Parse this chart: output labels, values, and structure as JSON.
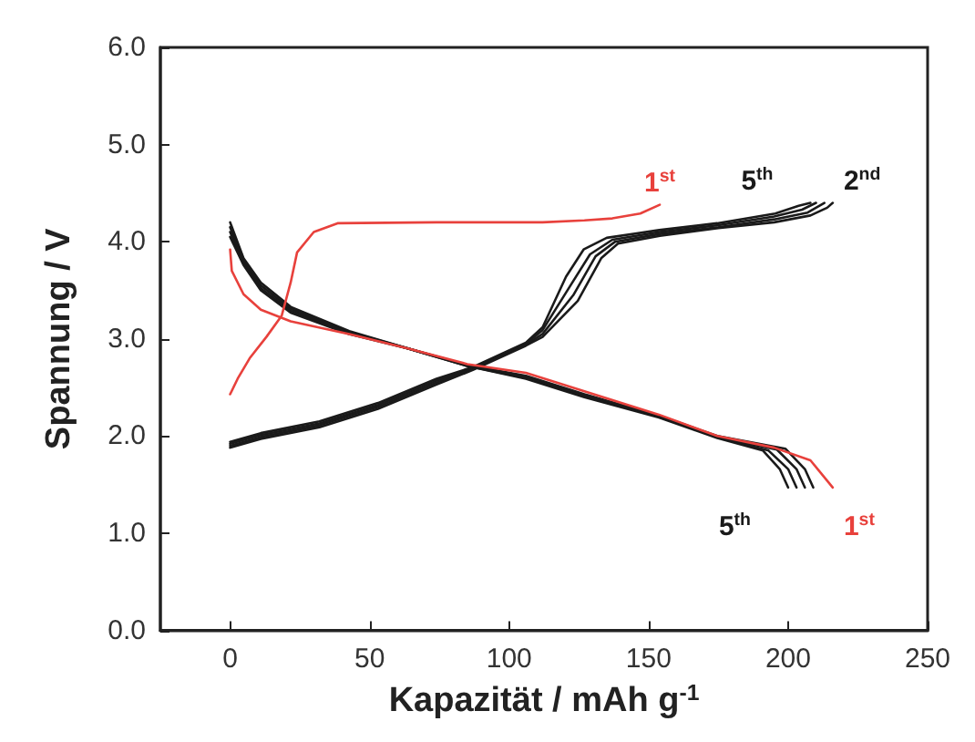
{
  "chart_data": {
    "type": "line",
    "xlabel": "Kapazität / mAh g$^{-1}$",
    "ylabel": "Spannung / V",
    "xlim": [
      -25,
      250
    ],
    "xticks": [
      0,
      50,
      100,
      150,
      200,
      250
    ],
    "ylim": [
      0,
      6
    ],
    "yticks": [
      {
        "value": 0,
        "label": "0.0"
      },
      {
        "value": 1,
        "label": "1.0"
      },
      {
        "value": 2,
        "label": "2.0"
      },
      {
        "value": 3,
        "label": "3.0"
      },
      {
        "value": 4,
        "label": "4.0"
      },
      {
        "value": 5,
        "label": "5.0"
      },
      {
        "value": 6,
        "label": "6.0"
      }
    ],
    "grid": false,
    "legend": false,
    "marker": "none",
    "line_style": "solid",
    "series": [
      {
        "name": "1$^{st}$",
        "color": "#e8413c",
        "x": [
          0,
          2.7,
          7,
          13,
          18.5,
          21.7,
          24,
          30,
          38.5,
          74,
          112,
          127,
          137,
          147,
          154
        ],
        "values": [
          2.43,
          2.59,
          2.8,
          3.02,
          3.24,
          3.58,
          3.89,
          4.1,
          4.19,
          4.2,
          4.2,
          4.22,
          4.24,
          4.29,
          4.38
        ]
      },
      {
        "name": "5$^{th}$",
        "color": "#1a1a1a",
        "x": [
          0,
          11,
          32,
          53,
          74,
          87,
          106,
          112,
          120.4,
          126.7,
          135,
          153.8,
          174.6,
          195.4,
          203.8,
          208
        ],
        "values": [
          1.94,
          2.03,
          2.15,
          2.34,
          2.59,
          2.71,
          2.96,
          3.12,
          3.64,
          3.92,
          4.04,
          4.12,
          4.19,
          4.29,
          4.37,
          4.4
        ]
      },
      {
        "color": "#1a1a1a",
        "x": [
          0,
          11,
          32,
          53,
          74,
          87,
          106,
          112,
          122,
          129,
          137,
          154,
          175,
          195,
          205,
          210
        ],
        "values": [
          1.92,
          2.01,
          2.13,
          2.32,
          2.57,
          2.7,
          2.95,
          3.09,
          3.55,
          3.87,
          4.02,
          4.1,
          4.17,
          4.26,
          4.33,
          4.4
        ]
      },
      {
        "color": "#1a1a1a",
        "x": [
          0,
          11,
          32,
          53,
          74,
          87,
          106,
          112,
          123,
          131,
          138,
          154,
          175,
          195,
          207,
          213
        ],
        "values": [
          1.9,
          1.99,
          2.11,
          2.3,
          2.55,
          2.69,
          2.94,
          3.05,
          3.45,
          3.85,
          4.0,
          4.08,
          4.15,
          4.23,
          4.3,
          4.4
        ]
      },
      {
        "name": "2$^{nd}$",
        "color": "#1a1a1a",
        "x": [
          0,
          11,
          32,
          53,
          74,
          87,
          106,
          112,
          124.6,
          133,
          139,
          154,
          175,
          195,
          208,
          214,
          216
        ],
        "values": [
          1.88,
          1.97,
          2.09,
          2.28,
          2.53,
          2.68,
          2.93,
          3.02,
          3.39,
          3.83,
          3.98,
          4.06,
          4.14,
          4.2,
          4.27,
          4.35,
          4.4
        ]
      },
      {
        "name": "1$^{st}$",
        "color": "#e8413c",
        "x": [
          0,
          0.6,
          4.8,
          11,
          21.7,
          42.7,
          64,
          85,
          106,
          127,
          153.7,
          174.6,
          195,
          208,
          214,
          216
        ],
        "values": [
          3.92,
          3.7,
          3.46,
          3.3,
          3.18,
          3.05,
          2.9,
          2.74,
          2.65,
          2.46,
          2.22,
          2.0,
          1.88,
          1.75,
          1.54,
          1.47
        ]
      },
      {
        "name": "5$^{th}$",
        "color": "#1a1a1a",
        "x": [
          0,
          4.8,
          11,
          21.7,
          42.7,
          64,
          85,
          106,
          127,
          153.7,
          174.6,
          191,
          197,
          200
        ],
        "values": [
          4.2,
          3.83,
          3.58,
          3.33,
          3.08,
          2.9,
          2.72,
          2.59,
          2.4,
          2.19,
          1.98,
          1.85,
          1.66,
          1.47
        ]
      },
      {
        "color": "#1a1a1a",
        "x": [
          0,
          4.8,
          11,
          21.7,
          42.7,
          64,
          85,
          106,
          127,
          153.7,
          174.6,
          193,
          200,
          203
        ],
        "values": [
          4.15,
          3.8,
          3.55,
          3.31,
          3.07,
          2.9,
          2.72,
          2.6,
          2.41,
          2.2,
          1.99,
          1.85,
          1.66,
          1.47
        ]
      },
      {
        "color": "#1a1a1a",
        "x": [
          0,
          4.8,
          11,
          21.7,
          42.7,
          64,
          85,
          106,
          127,
          153.7,
          174.6,
          196,
          203,
          206
        ],
        "values": [
          4.1,
          3.78,
          3.52,
          3.29,
          3.06,
          2.9,
          2.73,
          2.61,
          2.42,
          2.2,
          1.99,
          1.86,
          1.66,
          1.47
        ]
      },
      {
        "color": "#1a1a1a",
        "x": [
          0,
          4.8,
          11,
          21.7,
          42.7,
          64,
          85,
          106,
          127,
          153.7,
          174.6,
          199,
          206,
          209
        ],
        "values": [
          4.05,
          3.76,
          3.5,
          3.27,
          3.05,
          2.9,
          2.73,
          2.62,
          2.43,
          2.21,
          2.0,
          1.87,
          1.66,
          1.47
        ]
      }
    ]
  }
}
